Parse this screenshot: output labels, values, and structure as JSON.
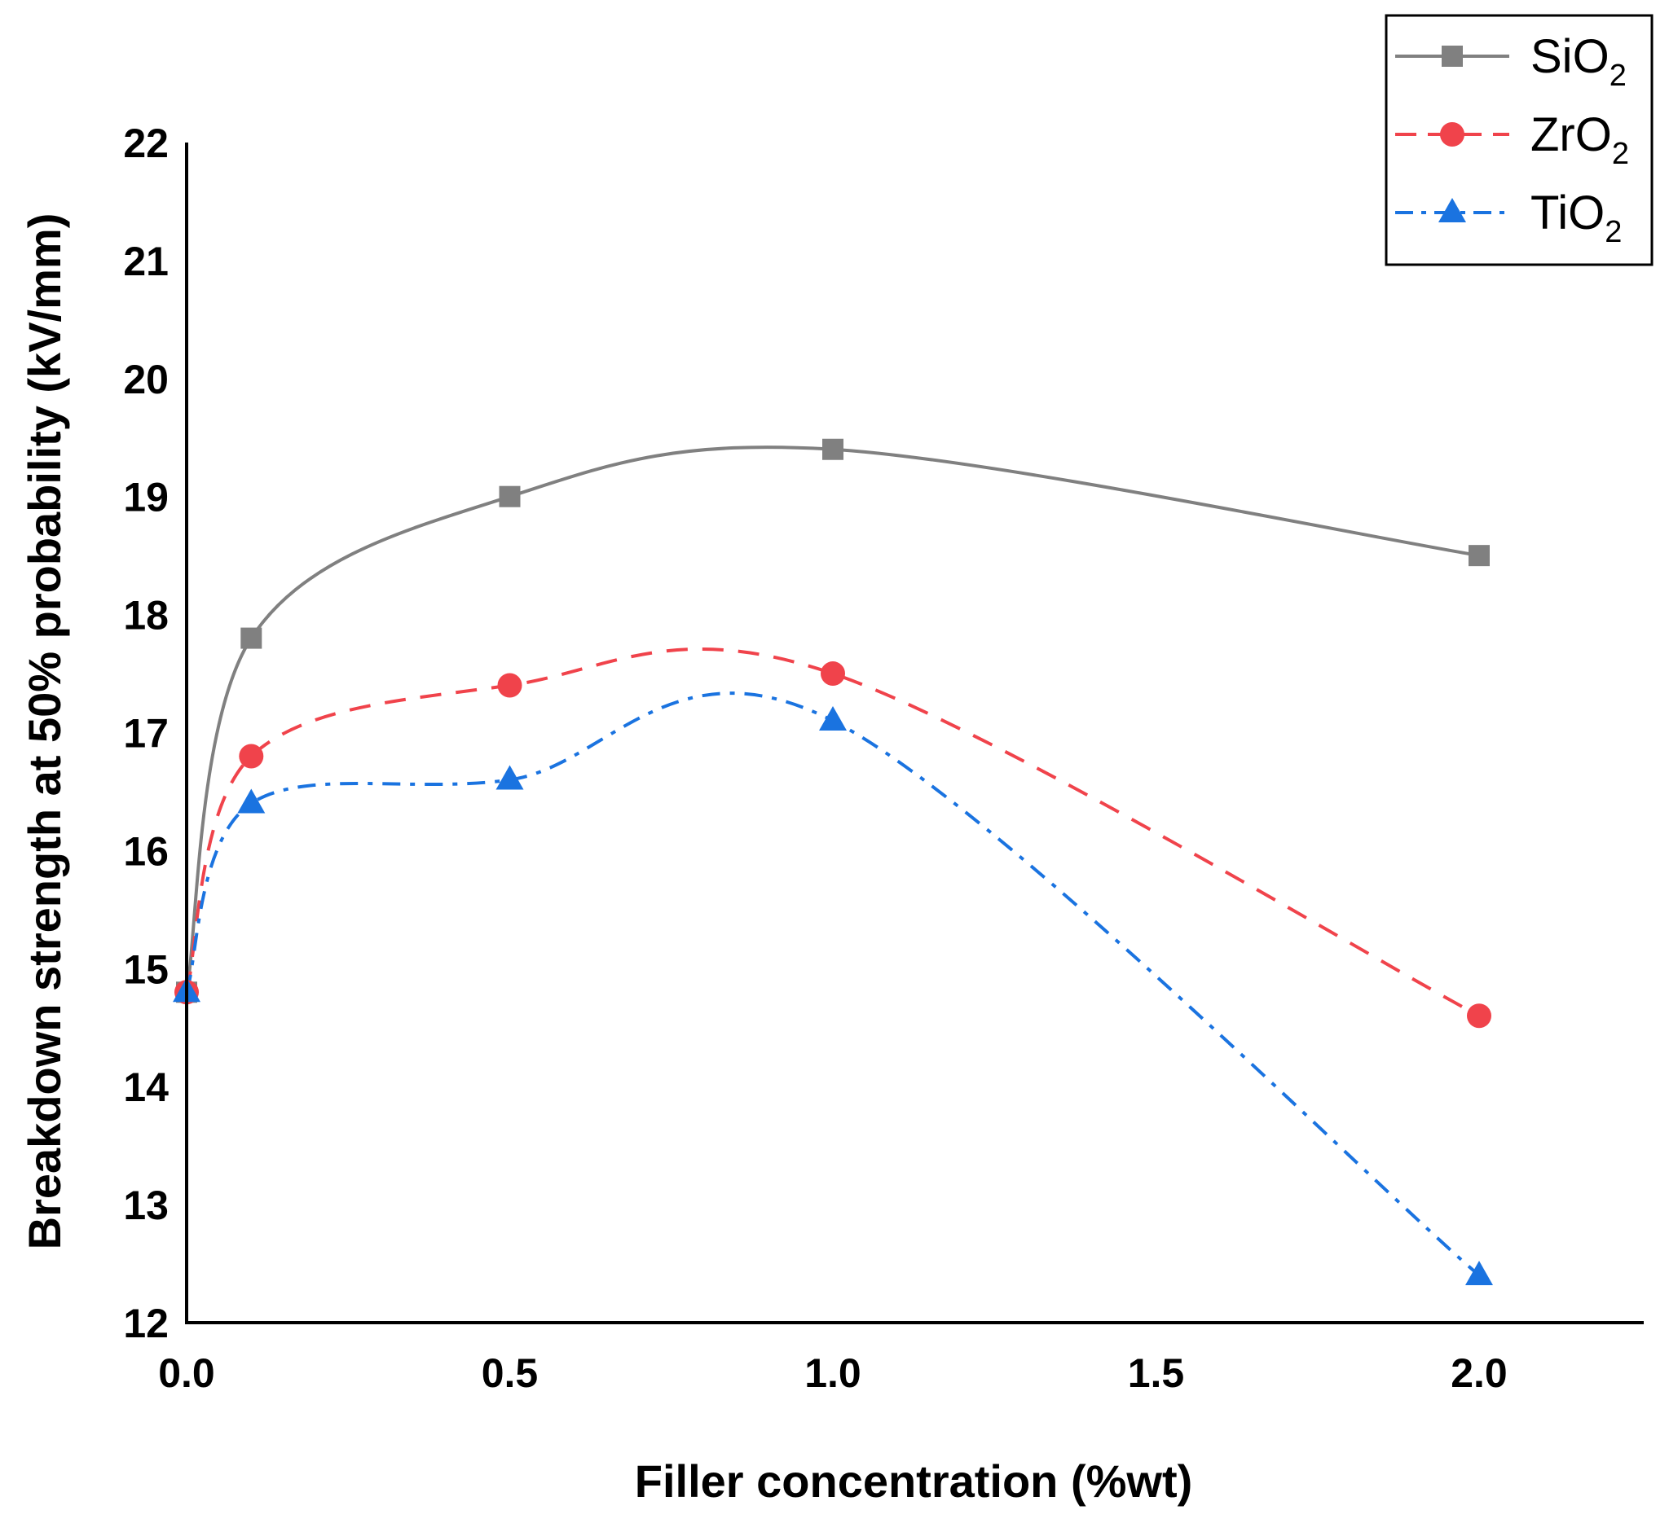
{
  "chart_data": {
    "type": "line",
    "title": "",
    "xlabel": "Filler concentration (%wt)",
    "ylabel": "Breakdown strength at 50% probability (kV/mm)",
    "xlim": [
      0,
      2.25
    ],
    "ylim": [
      12,
      22
    ],
    "x_ticks": [
      "0.0",
      "0.5",
      "1.0",
      "1.5",
      "2.0"
    ],
    "y_ticks": [
      "12",
      "13",
      "14",
      "15",
      "16",
      "17",
      "18",
      "19",
      "20",
      "21",
      "22"
    ],
    "grid": false,
    "legend_position": "top-right",
    "x": [
      0,
      0.1,
      0.5,
      1.0,
      2.0
    ],
    "series": [
      {
        "name": "SiO",
        "subscript": "2",
        "color": "#808080",
        "line_style": "solid",
        "marker": "square",
        "values": [
          14.8,
          17.8,
          19.0,
          19.4,
          18.5
        ]
      },
      {
        "name": "ZrO",
        "subscript": "2",
        "color": "#f0434b",
        "line_style": "dashed",
        "marker": "circle",
        "values": [
          14.8,
          16.8,
          17.4,
          17.5,
          14.6
        ]
      },
      {
        "name": "TiO",
        "subscript": "2",
        "color": "#1a73e0",
        "line_style": "dashdot",
        "marker": "triangle",
        "values": [
          14.8,
          16.4,
          16.6,
          17.1,
          12.4
        ]
      }
    ]
  }
}
